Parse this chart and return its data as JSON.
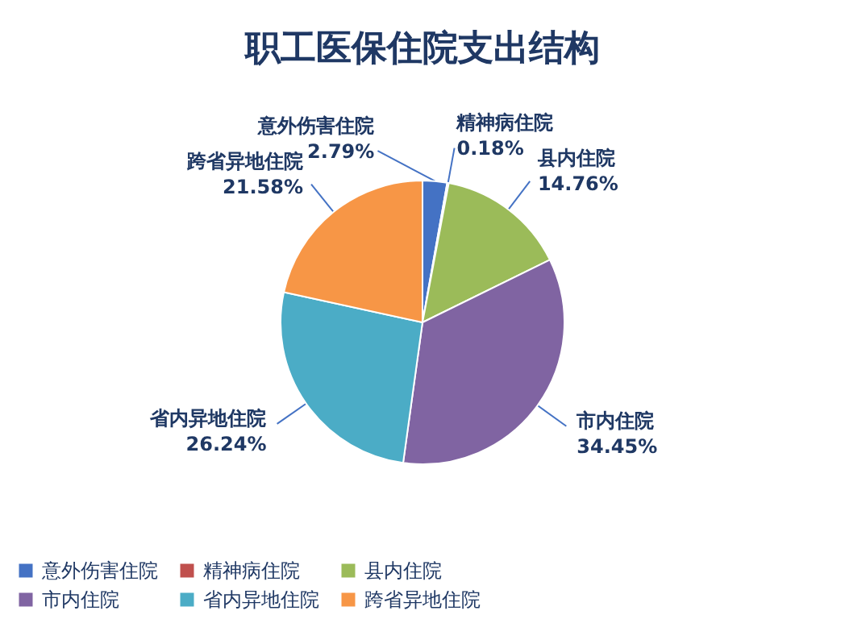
{
  "chart_data": {
    "type": "pie",
    "title": "职工医保住院支出结构",
    "categories": [
      "意外伤害住院",
      "精神病住院",
      "县内住院",
      "市内住院",
      "省内异地住院",
      "跨省异地住院"
    ],
    "values": [
      2.79,
      0.18,
      14.76,
      34.45,
      26.24,
      21.58
    ],
    "value_labels": [
      "2.79%",
      "0.18%",
      "14.76%",
      "34.45%",
      "26.24%",
      "21.58%"
    ],
    "colors": [
      "#4472c4",
      "#c0504d",
      "#9bbb59",
      "#8064a2",
      "#4bacc6",
      "#f79646"
    ],
    "legend": "bottom"
  }
}
